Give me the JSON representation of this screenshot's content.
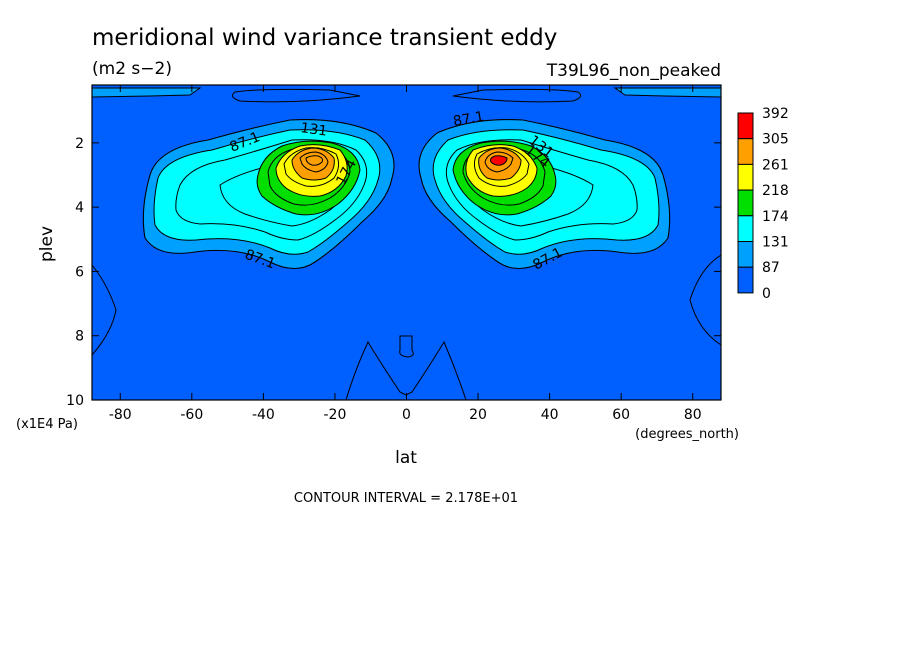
{
  "chart_data": {
    "type": "contour",
    "title": "meridional wind variance transient eddy",
    "units": "(m2 s−2)",
    "run_label": "T39L96_non_peaked",
    "xlabel": "lat",
    "xunits": "(degrees_north)",
    "ylabel": "plev",
    "yunits": "(x1E4 Pa)",
    "x_ticks": [
      "-80",
      "-60",
      "-40",
      "-20",
      "0",
      "20",
      "40",
      "60",
      "80"
    ],
    "x_tick_values": [
      -80,
      -60,
      -40,
      -20,
      0,
      20,
      40,
      60,
      80
    ],
    "y_ticks": [
      "2",
      "4",
      "6",
      "8",
      "10"
    ],
    "y_tick_values": [
      2,
      4,
      6,
      8,
      10
    ],
    "xlim": [
      -87.9,
      87.9
    ],
    "ylim": [
      0.2,
      10
    ],
    "y_inverted": true,
    "contour_interval_text": "CONTOUR INTERVAL = 2.178E+01",
    "colorbar_levels": [
      "392",
      "305",
      "261",
      "218",
      "174",
      "131",
      "87",
      "0"
    ],
    "colorbar_colors": [
      "#ff0000",
      "#ff9f00",
      "#ffff00",
      "#00df00",
      "#00ffff",
      "#00a0ff",
      "#005fff"
    ],
    "contour_labels": [
      "87.1",
      "131",
      "174",
      "87.1",
      "87.1",
      "131",
      "174",
      "87.1"
    ],
    "peak_maxima": [
      {
        "lat": -25,
        "plev": 2.5
      },
      {
        "lat": 25,
        "plev": 2.5
      }
    ]
  }
}
